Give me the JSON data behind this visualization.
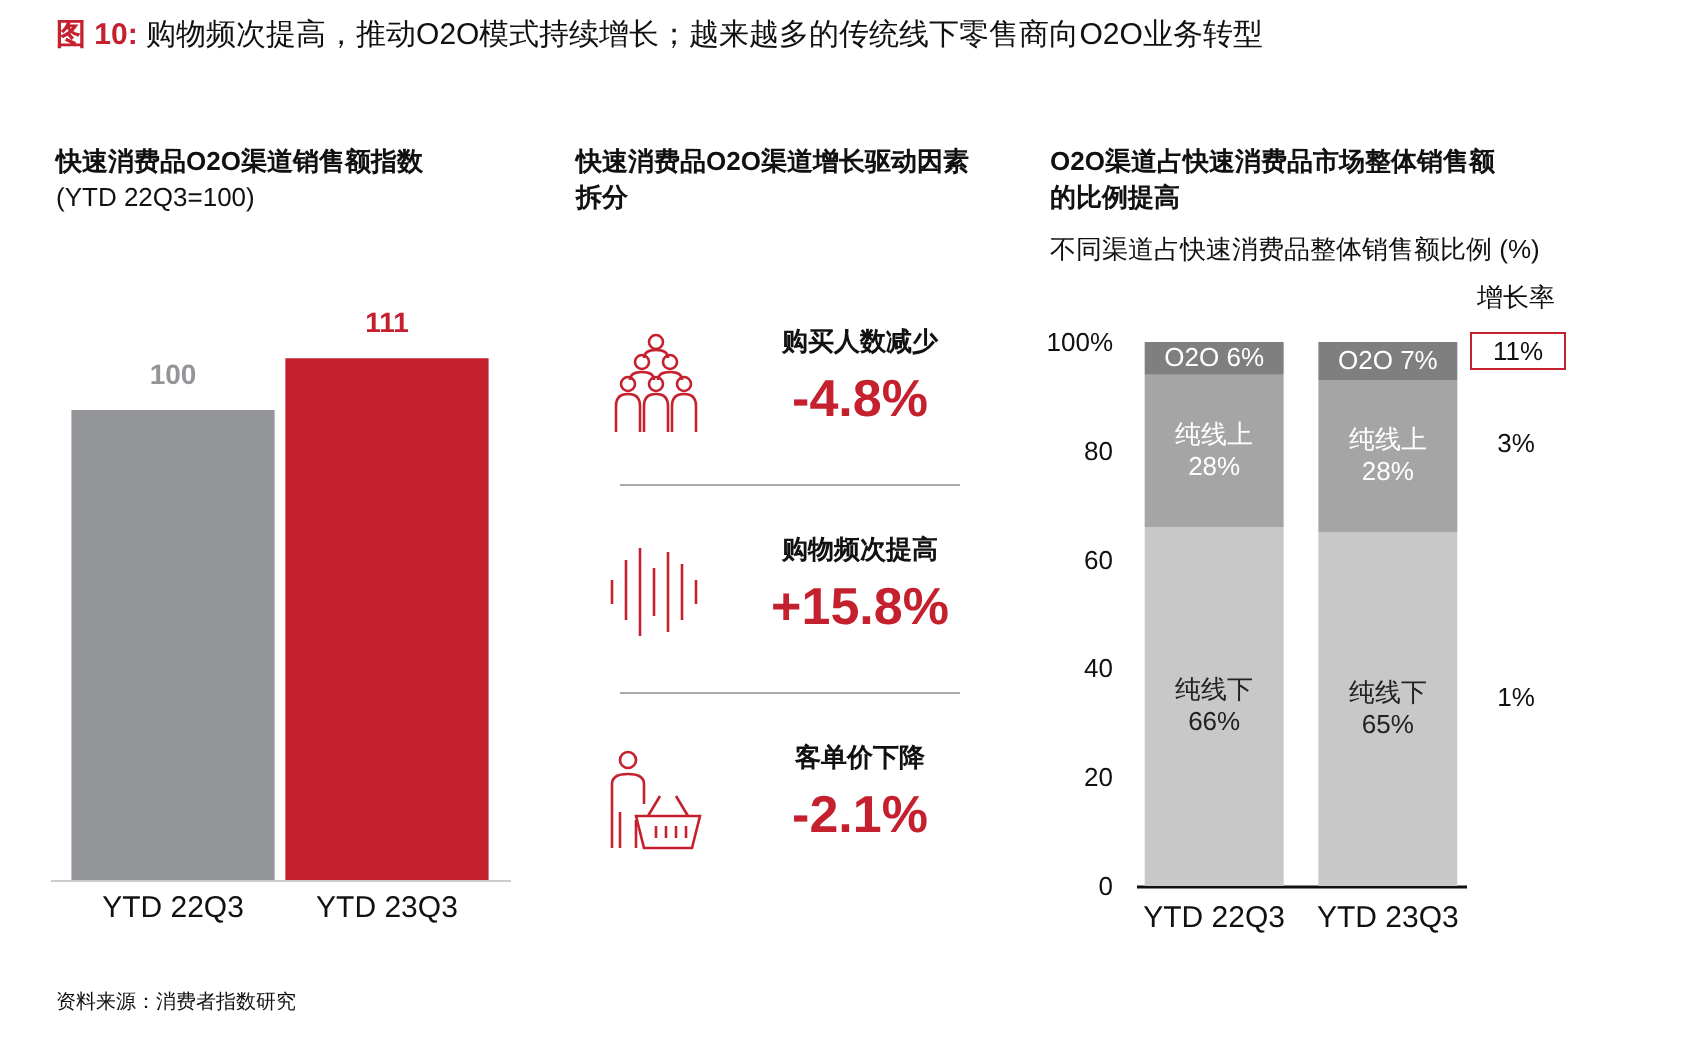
{
  "chart_data": [
    {
      "type": "bar",
      "title": "快速消费品O2O渠道销售额指数",
      "subtitle": "(YTD 22Q3=100)",
      "categories": [
        "YTD 22Q3",
        "YTD 23Q3"
      ],
      "values": [
        100,
        111
      ],
      "colors": [
        "#939598",
        "#c5202e"
      ],
      "data_labels": true,
      "annotations": [
        "图 10: 购物频次提高，推动O2O模式持续增长；越来越多的传统线下零售商向O2O业务转型",
        "资料来源：消费者指数研究"
      ]
    },
    {
      "type": "other",
      "title": "快速消费品O2O渠道增长驱动因素拆分",
      "annotations": [
        "购买人数减少",
        "-4.8%",
        "购物频次提高",
        "+15.8%",
        "客单价下降",
        "-2.1%"
      ]
    },
    {
      "type": "bar",
      "stacked": true,
      "title": "O2O渠道占快速消费品市场整体销售额的比例提高",
      "subtitle": "不同渠道占快速消费品整体销售额比例 (%)",
      "categories": [
        "YTD 22Q3",
        "YTD 23Q3"
      ],
      "ylim": [
        0,
        100
      ],
      "yticks": [
        0,
        20,
        40,
        60,
        80,
        {
          "value": 100,
          "label": "100%"
        }
      ],
      "series": [
        {
          "name": "纯线下",
          "color": "#c8c8c8",
          "values": [
            66,
            65
          ],
          "value_labels": [
            "66%",
            "65%"
          ]
        },
        {
          "name": "纯线上",
          "color": "#a5a5a5",
          "values": [
            28,
            28
          ],
          "value_labels": [
            "28%",
            "28%"
          ]
        },
        {
          "name": "O2O",
          "color": "#7f7f7f",
          "values": [
            6,
            7
          ],
          "value_labels": [
            "6%",
            "7%"
          ]
        }
      ],
      "annotations": [
        "增长率",
        "11%",
        "3%",
        "1%"
      ]
    }
  ]
}
